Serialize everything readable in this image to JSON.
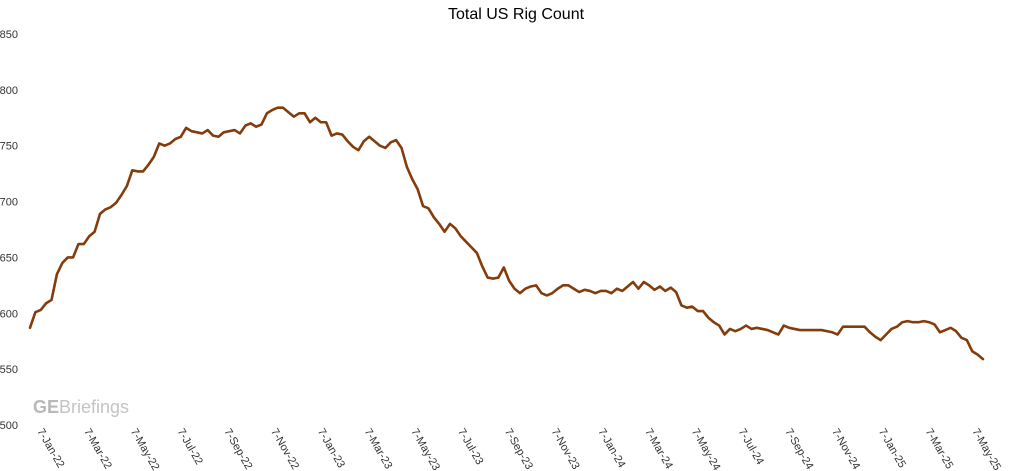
{
  "chart_data": {
    "type": "line",
    "title": "Total US Rig Count",
    "xlabel": "",
    "ylabel": "",
    "ylim": [
      500,
      850
    ],
    "yticks": [
      500,
      550,
      600,
      650,
      700,
      750,
      800,
      850
    ],
    "grid": false,
    "legend": "none",
    "line_color": "#843C0C",
    "x_tick_labels": [
      "7-Jan-22",
      "7-Mar-22",
      "7-May-22",
      "7-Jul-22",
      "7-Sep-22",
      "7-Nov-22",
      "7-Jan-23",
      "7-Mar-23",
      "7-May-23",
      "7-Jul-23",
      "7-Sep-23",
      "7-Nov-23",
      "7-Jan-24",
      "7-Mar-24",
      "7-May-24",
      "7-Jul-24",
      "7-Sep-24",
      "7-Nov-24",
      "7-Jan-25",
      "7-Mar-25",
      "7-May-25"
    ],
    "series": [
      {
        "values": [
          587,
          601,
          603,
          609,
          612,
          635,
          645,
          650,
          650,
          662,
          662,
          669,
          673,
          689,
          693,
          695,
          699,
          706,
          714,
          728,
          727,
          727,
          733,
          740,
          752,
          750,
          752,
          756,
          758,
          766,
          763,
          762,
          761,
          764,
          759,
          758,
          762,
          763,
          764,
          761,
          768,
          770,
          767,
          769,
          779,
          782,
          784,
          784,
          780,
          776,
          779,
          779,
          771,
          775,
          771,
          771,
          759,
          761,
          760,
          754,
          749,
          746,
          754,
          758,
          754,
          750,
          748,
          753,
          755,
          748,
          731,
          720,
          711,
          696,
          694,
          686,
          680,
          673,
          680,
          676,
          669,
          664,
          659,
          654,
          642,
          632,
          631,
          632,
          641,
          629,
          622,
          618,
          622,
          624,
          625,
          618,
          616,
          618,
          622,
          625,
          625,
          622,
          619,
          621,
          620,
          618,
          620,
          620,
          618,
          622,
          620,
          624,
          628,
          622,
          628,
          625,
          621,
          624,
          620,
          623,
          619,
          607,
          605,
          606,
          602,
          602,
          596,
          592,
          589,
          581,
          586,
          584,
          586,
          589,
          586,
          587,
          586,
          585,
          583,
          581,
          589,
          587,
          586,
          585,
          585,
          585,
          585,
          585,
          584,
          583,
          581,
          588,
          588,
          588,
          588,
          588,
          583,
          579,
          576,
          581,
          586,
          588,
          592,
          593,
          592,
          592,
          593,
          592,
          590,
          583,
          585,
          587,
          584,
          578,
          576,
          566,
          563,
          559
        ]
      }
    ]
  },
  "watermark": {
    "bold_part": "GE",
    "regular_part": "Briefings"
  }
}
